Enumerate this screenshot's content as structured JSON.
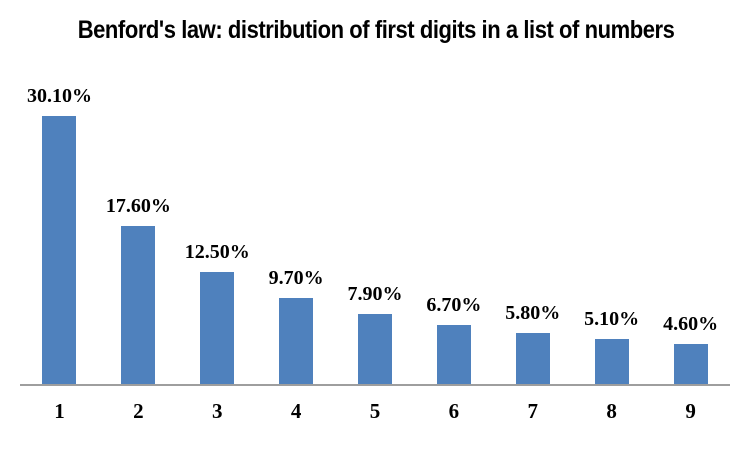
{
  "chart_data": {
    "type": "bar",
    "title": "Benford's law: distribution of first digits in a list of numbers",
    "categories": [
      "1",
      "2",
      "3",
      "4",
      "5",
      "6",
      "7",
      "8",
      "9"
    ],
    "values": [
      30.1,
      17.6,
      12.5,
      9.7,
      7.9,
      6.7,
      5.8,
      5.1,
      4.6
    ],
    "data_labels": [
      "30.10%",
      "17.60%",
      "12.50%",
      "9.70%",
      "7.90%",
      "6.70%",
      "5.80%",
      "5.10%",
      "4.60%"
    ],
    "xlabel": "",
    "ylabel": "",
    "ylim": [
      0,
      31
    ],
    "grid": false,
    "legend": false,
    "y_axis_visible": false,
    "bar_color": "#4f81bd",
    "axis_line_color": "#9e9e9e",
    "title_color": "#000000",
    "label_color": "#000000"
  }
}
